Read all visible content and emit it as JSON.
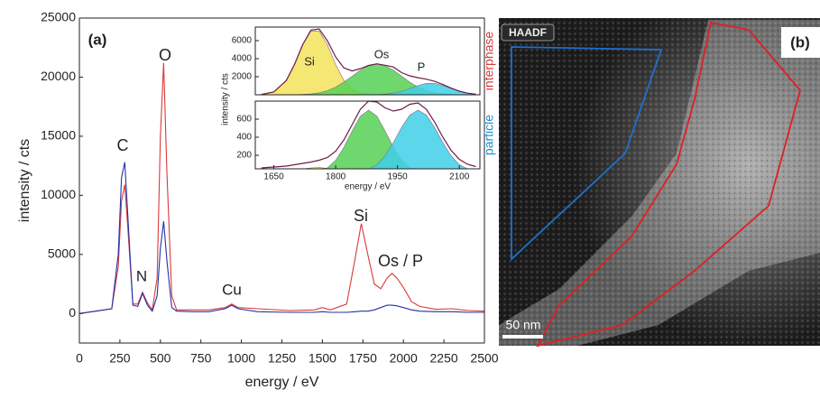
{
  "chart_data": [
    {
      "type": "line",
      "xlabel": "energy / eV",
      "ylabel": "intensity / cts",
      "xlim": [
        0,
        2500
      ],
      "ylim": [
        -2500,
        25000
      ],
      "xticks": [
        0,
        250,
        500,
        750,
        1000,
        1250,
        1500,
        1750,
        2000,
        2250,
        2500
      ],
      "yticks": [
        0,
        5000,
        10000,
        15000,
        20000,
        25000
      ],
      "annotations": [
        "(a)",
        "C",
        "N",
        "O",
        "Cu",
        "Si",
        "Os / P"
      ],
      "x": [
        0,
        100,
        200,
        240,
        260,
        280,
        300,
        330,
        360,
        390,
        420,
        450,
        480,
        500,
        520,
        540,
        570,
        600,
        700,
        800,
        900,
        940,
        980,
        1100,
        1300,
        1450,
        1500,
        1550,
        1650,
        1700,
        1740,
        1780,
        1820,
        1860,
        1900,
        1930,
        1960,
        2000,
        2050,
        2100,
        2200,
        2300,
        2400,
        2500
      ],
      "series": [
        {
          "color": "#d83a3a",
          "values": [
            0,
            200,
            400,
            4000,
            9500,
            10900,
            7000,
            800,
            800,
            1800,
            900,
            300,
            3000,
            15000,
            21200,
            12000,
            1500,
            300,
            300,
            300,
            500,
            800,
            500,
            400,
            250,
            300,
            500,
            300,
            800,
            4500,
            7600,
            5000,
            2500,
            2100,
            3000,
            3400,
            3000,
            2200,
            1000,
            600,
            350,
            400,
            250,
            200
          ]
        },
        {
          "color": "#2233a8",
          "values": [
            0,
            200,
            400,
            5000,
            11500,
            12800,
            8000,
            700,
            600,
            1700,
            700,
            200,
            1500,
            5500,
            7800,
            4500,
            500,
            200,
            150,
            150,
            400,
            700,
            400,
            150,
            100,
            100,
            150,
            100,
            100,
            150,
            200,
            200,
            300,
            500,
            700,
            700,
            650,
            500,
            300,
            200,
            150,
            150,
            100,
            100
          ]
        }
      ]
    },
    {
      "type": "area",
      "label": "interphase",
      "label_color": "#d83a3a",
      "ylabel": "intensity / cts",
      "xlim": [
        1605,
        2150
      ],
      "ylim": [
        0,
        7500
      ],
      "yticks": [
        2000,
        4000,
        6000
      ],
      "x": [
        1620,
        1650,
        1680,
        1700,
        1720,
        1740,
        1760,
        1780,
        1800,
        1820,
        1840,
        1860,
        1880,
        1900,
        1920,
        1940,
        1960,
        1980,
        2000,
        2020,
        2040,
        2060,
        2080,
        2100,
        2120,
        2140
      ],
      "series": [
        {
          "name": "Si",
          "color": "#f2e35a",
          "filled": true,
          "values": [
            37,
            320,
            1580,
            3340,
            5510,
            7070,
            7070,
            5510,
            3340,
            1580,
            580,
            165,
            37,
            7,
            0,
            0,
            0,
            0,
            0,
            0,
            0,
            0,
            0,
            0,
            0,
            0
          ]
        },
        {
          "name": "Os",
          "color": "#55d155",
          "filled": true,
          "values": [
            0,
            0,
            4,
            13,
            38,
            96,
            224,
            460,
            850,
            1400,
            2060,
            2730,
            3210,
            3400,
            3210,
            2730,
            2060,
            1400,
            850,
            460,
            224,
            96,
            38,
            13,
            4,
            1
          ]
        },
        {
          "name": "P",
          "color": "#3fcfe8",
          "filled": true,
          "values": [
            0,
            0,
            0,
            0,
            0,
            0,
            0,
            0,
            0,
            0,
            0,
            0,
            0,
            20,
            65,
            176,
            390,
            700,
            1040,
            1270,
            1270,
            1040,
            700,
            390,
            176,
            65
          ]
        },
        {
          "color": "#6a1d4a",
          "filled": false,
          "values": [
            37,
            320,
            1584,
            3353,
            5548,
            7166,
            7294,
            5970,
            4190,
            2980,
            2640,
            2895,
            3247,
            3427,
            3275,
            3082,
            2450,
            2100,
            1890,
            1730,
            1494,
            1136,
            738,
            403,
            180,
            66
          ]
        }
      ]
    },
    {
      "type": "area",
      "label": "particle",
      "label_color": "#1f8fd0",
      "xlabel": "energy / eV",
      "xlim": [
        1605,
        2150
      ],
      "ylim": [
        50,
        800
      ],
      "yticks": [
        200,
        400,
        600
      ],
      "xticks": [
        1650,
        1800,
        1950,
        2100
      ],
      "x": [
        1620,
        1650,
        1680,
        1700,
        1720,
        1740,
        1760,
        1780,
        1800,
        1820,
        1840,
        1860,
        1880,
        1900,
        1920,
        1940,
        1960,
        1980,
        2000,
        2020,
        2040,
        2060,
        2080,
        2100,
        2120,
        2140
      ],
      "series": [
        {
          "color": "#f2e35a",
          "filled": true,
          "values": [
            0,
            10,
            20,
            35,
            50,
            60,
            65,
            55,
            40,
            20,
            8,
            0,
            0,
            0,
            0,
            0,
            0,
            0,
            0,
            0,
            0,
            0,
            0,
            0,
            0,
            0
          ]
        },
        {
          "color": "#55d155",
          "filled": true,
          "values": [
            0,
            0,
            0,
            0,
            0,
            5,
            20,
            60,
            144,
            288,
            470,
            633,
            700,
            633,
            470,
            288,
            144,
            60,
            20,
            6,
            0,
            0,
            0,
            0,
            0,
            0
          ]
        },
        {
          "color": "#3fcfe8",
          "filled": true,
          "values": [
            0,
            0,
            0,
            0,
            0,
            0,
            0,
            0,
            0,
            0,
            0,
            14,
            39,
            95,
            195,
            341,
            508,
            646,
            700,
            646,
            508,
            341,
            195,
            95,
            39,
            14
          ]
        },
        {
          "color": "#6a1d4a",
          "filled": false,
          "values": [
            60,
            70,
            80,
            95,
            110,
            125,
            145,
            175,
            245,
            370,
            540,
            710,
            800,
            790,
            725,
            690,
            710,
            765,
            780,
            710,
            570,
            400,
            255,
            155,
            100,
            75
          ]
        }
      ]
    }
  ],
  "image_panel": {
    "caption": "HAADF",
    "label": "(b)",
    "scale_bar": "50 nm"
  }
}
